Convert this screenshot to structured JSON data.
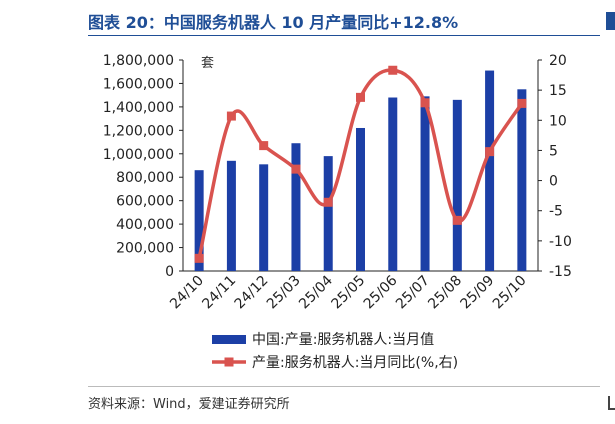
{
  "title": "图表 20：中国服务机器人 10 月产量同比+12.8%",
  "source": "资料来源：Wind，爱建证券研究所",
  "colors": {
    "bar": "#1c3fa6",
    "line": "#d9534f",
    "axis": "#222222"
  },
  "chart_data": {
    "type": "bar",
    "categories": [
      "24/10",
      "24/11",
      "24/12",
      "25/03",
      "25/04",
      "25/05",
      "25/06",
      "25/07",
      "25/08",
      "25/09",
      "25/10"
    ],
    "left_axis": {
      "unit": "套",
      "ylim": [
        0,
        1800000
      ],
      "ticks": [
        "0",
        "200,000",
        "400,000",
        "600,000",
        "800,000",
        "1,000,000",
        "1,200,000",
        "1,400,000",
        "1,600,000",
        "1,800,000"
      ]
    },
    "right_axis": {
      "ylim": [
        -15,
        20
      ],
      "ticks": [
        "-15",
        "-10",
        "-5",
        "0",
        "5",
        "10",
        "15",
        "20"
      ]
    },
    "series": [
      {
        "name": "中国:产量:服务机器人:当月值",
        "kind": "bar",
        "axis": "left",
        "values": [
          860000,
          940000,
          910000,
          1090000,
          980000,
          1220000,
          1480000,
          1490000,
          1460000,
          1710000,
          1550000
        ]
      },
      {
        "name": "产量:服务机器人:当月同比(%,右)",
        "kind": "line",
        "axis": "right",
        "values": [
          -12.9,
          10.7,
          5.8,
          1.9,
          -3.6,
          13.8,
          18.3,
          12.9,
          -6.6,
          4.8,
          12.8
        ]
      }
    ],
    "grid": false,
    "legend_position": "bottom"
  }
}
